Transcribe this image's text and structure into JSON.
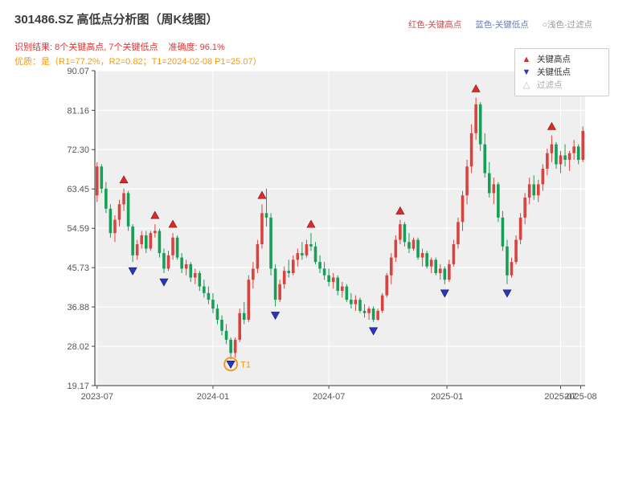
{
  "header": {
    "title": "301486.SZ 高低点分析图（周K线图）",
    "note_high": "红色-关键高点",
    "note_high_color": "#c0504d",
    "note_low": "蓝色-关键低点",
    "note_low_color": "#6b7db3",
    "note_filtered": "○浅色-过滤点",
    "note_filtered_color": "#999999",
    "result_text": "识别结果: 8个关键高点, 7个关键低点",
    "accuracy_text": "准确度: 96.1%",
    "result_color": "#e8322f",
    "quality_line": "优质：是（R1=77.2%，R2=0.82；T1=2024-02-08 P1=25.07）",
    "quality_color": "#ff9800"
  },
  "legend": {
    "items": [
      {
        "glyph": "▲",
        "label": "关键高点",
        "color": "#d92b2b",
        "label_color": "#333333"
      },
      {
        "glyph": "▼",
        "label": "关键低点",
        "color": "#2a35c5",
        "label_color": "#333333"
      },
      {
        "glyph": "△",
        "label": "过滤点",
        "color": "#bbbbbb",
        "label_color": "#aaaaaa"
      }
    ]
  },
  "chart_data": {
    "type": "candlestick",
    "title": "301486.SZ 高低点分析图（周K线图）",
    "ylabel": "",
    "xlabel": "",
    "ylim": [
      19.17,
      90.07
    ],
    "y_ticks": [
      90.07,
      81.16,
      72.3,
      63.45,
      54.59,
      45.73,
      36.88,
      28.02,
      19.17
    ],
    "x_ticks": [
      {
        "label": "2023-07",
        "week": 0
      },
      {
        "label": "2024-01",
        "week": 26
      },
      {
        "label": "2024-07",
        "week": 52
      },
      {
        "label": "2025-01",
        "week": 78.5
      },
      {
        "label": "2025-07",
        "week": 104
      },
      {
        "label": "2025-08",
        "week": 108.5
      }
    ],
    "plot_bg": "#f0efef",
    "grid_color": "#ffffff",
    "up_color": "#d9433f",
    "down_color": "#179e57",
    "high_marker_color": "#d92b2b",
    "low_marker_color": "#2a35c5",
    "t1_color": "#f59a23",
    "candles": [
      [
        62,
        69.5,
        60.5,
        68.5
      ],
      [
        68.5,
        69,
        62.5,
        63.5
      ],
      [
        63.5,
        65,
        58,
        59
      ],
      [
        59,
        60,
        52.5,
        53.5
      ],
      [
        53.5,
        57.5,
        51.5,
        56.5
      ],
      [
        56.5,
        61,
        55,
        60
      ],
      [
        60,
        63.5,
        58.5,
        62.5
      ],
      [
        62.5,
        63,
        54,
        55
      ],
      [
        55,
        55.5,
        47,
        48.5
      ],
      [
        48.5,
        52,
        47.5,
        51
      ],
      [
        51,
        54,
        50,
        53
      ],
      [
        53,
        54,
        49,
        50
      ],
      [
        50,
        54,
        49.5,
        53.5
      ],
      [
        53.5,
        55.5,
        52.5,
        54
      ],
      [
        54,
        54.5,
        48,
        49
      ],
      [
        49,
        50,
        44.5,
        45.5
      ],
      [
        45.5,
        49.5,
        45,
        48.5
      ],
      [
        48.5,
        53.5,
        47.5,
        52.5
      ],
      [
        52.5,
        53,
        47.5,
        48
      ],
      [
        48,
        49,
        44.5,
        45.5
      ],
      [
        45.5,
        47.5,
        44,
        46.5
      ],
      [
        46.5,
        47,
        42.5,
        43.5
      ],
      [
        43.5,
        45.5,
        42,
        44.5
      ],
      [
        44.5,
        45,
        40.5,
        41.5
      ],
      [
        41.5,
        43,
        39,
        40
      ],
      [
        40,
        41.5,
        37.5,
        38.5
      ],
      [
        38.5,
        40,
        35.5,
        36.5
      ],
      [
        36.5,
        37.5,
        33,
        34
      ],
      [
        34,
        35,
        30.5,
        31.5
      ],
      [
        31.5,
        33,
        28.5,
        29.5
      ],
      [
        29.5,
        30,
        25.07,
        26.5
      ],
      [
        26.5,
        30,
        25.5,
        29.5
      ],
      [
        29.5,
        36.5,
        29,
        35.5
      ],
      [
        35.5,
        38,
        33,
        34
      ],
      [
        34,
        44,
        33.5,
        43
      ],
      [
        43,
        47,
        41,
        45.5
      ],
      [
        45.5,
        52,
        44.5,
        51
      ],
      [
        51,
        60,
        50,
        58
      ],
      [
        58,
        63.5,
        55,
        57
      ],
      [
        57,
        58,
        44,
        45.5
      ],
      [
        45.5,
        46.5,
        37,
        38.5
      ],
      [
        38.5,
        43,
        38,
        42
      ],
      [
        42,
        46,
        41,
        45
      ],
      [
        45,
        47.5,
        43.5,
        44.5
      ],
      [
        44.5,
        48.5,
        44,
        47.5
      ],
      [
        47.5,
        50,
        46,
        49
      ],
      [
        49,
        51.5,
        47.5,
        48.5
      ],
      [
        48.5,
        52,
        48,
        51
      ],
      [
        51,
        53.5,
        49.5,
        50.5
      ],
      [
        50.5,
        51.5,
        46.5,
        47
      ],
      [
        47,
        48.5,
        44.5,
        45.5
      ],
      [
        45.5,
        47,
        43,
        44
      ],
      [
        44,
        45.5,
        41.5,
        42.5
      ],
      [
        42.5,
        44.5,
        41,
        43.5
      ],
      [
        43.5,
        44,
        39.5,
        40.5
      ],
      [
        40.5,
        42.5,
        39,
        41.5
      ],
      [
        41.5,
        42,
        38,
        38.5
      ],
      [
        38.5,
        40,
        36.5,
        37.5
      ],
      [
        37.5,
        39.5,
        36,
        38.5
      ],
      [
        38.5,
        39,
        35.5,
        36
      ],
      [
        36,
        37.5,
        34.5,
        35.5
      ],
      [
        35.5,
        37,
        34,
        36.5
      ],
      [
        36.5,
        37,
        33.5,
        34
      ],
      [
        34,
        36.5,
        33.8,
        36
      ],
      [
        36,
        40,
        35.5,
        39.5
      ],
      [
        39.5,
        44.5,
        39,
        44
      ],
      [
        44,
        49,
        42,
        48
      ],
      [
        48,
        53,
        47,
        52
      ],
      [
        52,
        56.5,
        51,
        55.5
      ],
      [
        55.5,
        56,
        50.5,
        51.5
      ],
      [
        51.5,
        53.5,
        49,
        50
      ],
      [
        50,
        52.5,
        49.5,
        52
      ],
      [
        52,
        52.5,
        47.5,
        48
      ],
      [
        48,
        50,
        46,
        49
      ],
      [
        49,
        49.5,
        45.5,
        46
      ],
      [
        46,
        48,
        44.5,
        47.5
      ],
      [
        47.5,
        48,
        44,
        44.5
      ],
      [
        44.5,
        46.5,
        43,
        45.5
      ],
      [
        45.5,
        46,
        42,
        43
      ],
      [
        43,
        47.5,
        42.5,
        46.5
      ],
      [
        46.5,
        52,
        46,
        51
      ],
      [
        51,
        57,
        50,
        56
      ],
      [
        56,
        63,
        54,
        62
      ],
      [
        62,
        70,
        60,
        68.5
      ],
      [
        68.5,
        78,
        67,
        76
      ],
      [
        76,
        84,
        74.5,
        82.5
      ],
      [
        82.5,
        83,
        72,
        73.5
      ],
      [
        73.5,
        76,
        66,
        67
      ],
      [
        67,
        69.5,
        61.5,
        62.5
      ],
      [
        62.5,
        66,
        60,
        64.5
      ],
      [
        64.5,
        65,
        56,
        57
      ],
      [
        57,
        58.5,
        49.5,
        50.5
      ],
      [
        50.5,
        52,
        42,
        44
      ],
      [
        44,
        48,
        43.5,
        47
      ],
      [
        47,
        53,
        46.5,
        52
      ],
      [
        52,
        58,
        51,
        57
      ],
      [
        57,
        62.5,
        55.5,
        61.5
      ],
      [
        61.5,
        66,
        60,
        64.5
      ],
      [
        64.5,
        66.5,
        61,
        62
      ],
      [
        62,
        65.5,
        60.5,
        64.5
      ],
      [
        64.5,
        69,
        63,
        68
      ],
      [
        68,
        72.5,
        66.5,
        71.5
      ],
      [
        71.5,
        75.5,
        69.5,
        73.5
      ],
      [
        73.5,
        74,
        68,
        69
      ],
      [
        69,
        72,
        67,
        71
      ],
      [
        71,
        73.5,
        68.5,
        70
      ],
      [
        70,
        72,
        67.5,
        71.5
      ],
      [
        71.5,
        74.5,
        70,
        73
      ],
      [
        73,
        73.5,
        69,
        70
      ],
      [
        70,
        77.5,
        69.5,
        76.5
      ]
    ],
    "key_highs": [
      {
        "i": 6,
        "y": 65.5
      },
      {
        "i": 13,
        "y": 57.5
      },
      {
        "i": 17,
        "y": 55.5
      },
      {
        "i": 37,
        "y": 62
      },
      {
        "i": 48,
        "y": 55.5
      },
      {
        "i": 68,
        "y": 58.5
      },
      {
        "i": 85,
        "y": 86
      },
      {
        "i": 102,
        "y": 77.5
      }
    ],
    "key_lows": [
      {
        "i": 8,
        "y": 45
      },
      {
        "i": 15,
        "y": 42.5
      },
      {
        "i": 30,
        "y": 24
      },
      {
        "i": 40,
        "y": 35
      },
      {
        "i": 62,
        "y": 31.5
      },
      {
        "i": 78,
        "y": 40
      },
      {
        "i": 92,
        "y": 40
      }
    ],
    "t1": {
      "i": 30,
      "y": 24,
      "label": "T1"
    }
  }
}
